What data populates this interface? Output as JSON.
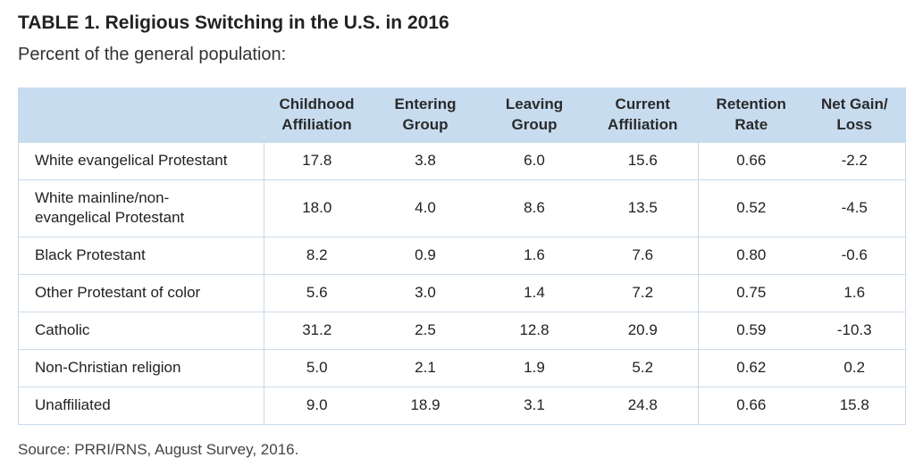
{
  "title": "TABLE 1. Religious Switching in the U.S. in 2016",
  "subtitle": "Percent of the general population:",
  "columns": [
    {
      "line1": "Childhood",
      "line2": "Affiliation"
    },
    {
      "line1": "Entering",
      "line2": "Group"
    },
    {
      "line1": "Leaving",
      "line2": "Group"
    },
    {
      "line1": "Current",
      "line2": "Affiliation"
    },
    {
      "line1": "Retention",
      "line2": "Rate"
    },
    {
      "line1": "Net Gain/",
      "line2": "Loss"
    }
  ],
  "rows": [
    {
      "label_line1": "White evangelical Protestant",
      "label_line2": "",
      "values": [
        "17.8",
        "3.8",
        "6.0",
        "15.6",
        "0.66",
        "-2.2"
      ]
    },
    {
      "label_line1": "White mainline/non-",
      "label_line2": "evangelical Protestant",
      "values": [
        "18.0",
        "4.0",
        "8.6",
        "13.5",
        "0.52",
        "-4.5"
      ]
    },
    {
      "label_line1": "Black Protestant",
      "label_line2": "",
      "values": [
        "8.2",
        "0.9",
        "1.6",
        "7.6",
        "0.80",
        "-0.6"
      ]
    },
    {
      "label_line1": "Other Protestant of color",
      "label_line2": "",
      "values": [
        "5.6",
        "3.0",
        "1.4",
        "7.2",
        "0.75",
        "1.6"
      ]
    },
    {
      "label_line1": "Catholic",
      "label_line2": "",
      "values": [
        "31.2",
        "2.5",
        "12.8",
        "20.9",
        "0.59",
        "-10.3"
      ]
    },
    {
      "label_line1": "Non-Christian religion",
      "label_line2": "",
      "values": [
        "5.0",
        "2.1",
        "1.9",
        "5.2",
        "0.62",
        "0.2"
      ]
    },
    {
      "label_line1": "Unaffiliated",
      "label_line2": "",
      "values": [
        "9.0",
        "18.9",
        "3.1",
        "24.8",
        "0.66",
        "15.8"
      ]
    }
  ],
  "source": "Source: PRRI/RNS, August Survey, 2016.",
  "colors": {
    "header_bg": "#c8dcf0",
    "grid": "#c9d9ea"
  }
}
